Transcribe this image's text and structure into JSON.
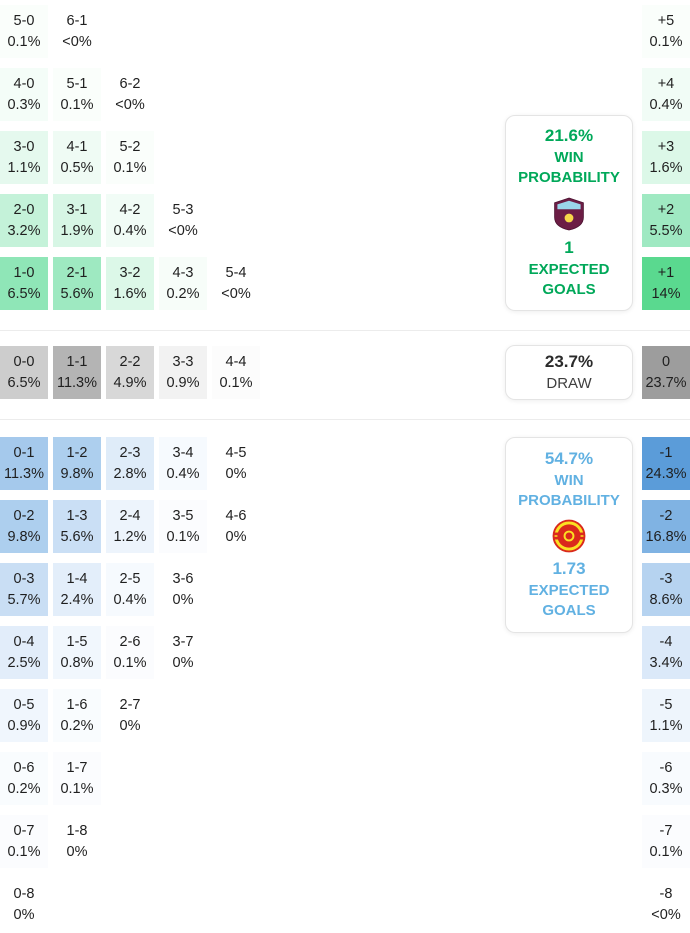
{
  "panels": {
    "home": {
      "team": "Burnley",
      "probability": "21.6%",
      "label1": "WIN",
      "label2": "PROBABILITY",
      "expected_goals": "1",
      "eg_label1": "EXPECTED",
      "eg_label2": "GOALS",
      "accent": "#00a859"
    },
    "draw": {
      "probability": "23.7%",
      "label": "DRAW"
    },
    "away": {
      "team": "Manchester United",
      "probability": "54.7%",
      "label1": "WIN",
      "label2": "PROBABILITY",
      "expected_goals": "1.73",
      "eg_label1": "EXPECTED",
      "eg_label2": "GOALS",
      "accent": "#61b1e2"
    }
  },
  "chart_data": {
    "type": "heatmap",
    "summary": {
      "home_win_probability_pct": 21.6,
      "draw_probability_pct": 23.7,
      "away_win_probability_pct": 54.7,
      "home_expected_goals": 1,
      "away_expected_goals": 1.73
    },
    "sections": [
      {
        "id": "home-win",
        "rows": [
          {
            "cells": [
              {
                "s": "5-0",
                "p": "0.1%",
                "bg": "#fafefb"
              },
              {
                "s": "6-1",
                "p": "<0%",
                "bg": "#ffffff"
              }
            ],
            "margin": {
              "s": "+5",
              "p": "0.1%",
              "bg": "#fafefb"
            }
          },
          {
            "cells": [
              {
                "s": "4-0",
                "p": "0.3%",
                "bg": "#f4fdf8"
              },
              {
                "s": "5-1",
                "p": "0.1%",
                "bg": "#fafefb"
              },
              {
                "s": "6-2",
                "p": "<0%",
                "bg": "#ffffff"
              }
            ],
            "margin": {
              "s": "+4",
              "p": "0.4%",
              "bg": "#f1fcf6"
            }
          },
          {
            "cells": [
              {
                "s": "3-0",
                "p": "1.1%",
                "bg": "#e5f9ee"
              },
              {
                "s": "4-1",
                "p": "0.5%",
                "bg": "#effbf4"
              },
              {
                "s": "5-2",
                "p": "0.1%",
                "bg": "#fafefb"
              }
            ],
            "margin": {
              "s": "+3",
              "p": "1.6%",
              "bg": "#dcf8e8"
            }
          },
          {
            "cells": [
              {
                "s": "2-0",
                "p": "3.2%",
                "bg": "#c4f2d9"
              },
              {
                "s": "3-1",
                "p": "1.9%",
                "bg": "#d7f6e5"
              },
              {
                "s": "4-2",
                "p": "0.4%",
                "bg": "#f1fcf6"
              },
              {
                "s": "5-3",
                "p": "<0%",
                "bg": "#ffffff"
              }
            ],
            "margin": {
              "s": "+2",
              "p": "5.5%",
              "bg": "#9fe9c2"
            }
          },
          {
            "cells": [
              {
                "s": "1-0",
                "p": "6.5%",
                "bg": "#8fe6b7"
              },
              {
                "s": "2-1",
                "p": "5.6%",
                "bg": "#9ee9c1"
              },
              {
                "s": "3-2",
                "p": "1.6%",
                "bg": "#dcf8e8"
              },
              {
                "s": "4-3",
                "p": "0.2%",
                "bg": "#f7fdf9"
              },
              {
                "s": "5-4",
                "p": "<0%",
                "bg": "#ffffff"
              }
            ],
            "margin": {
              "s": "+1",
              "p": "14%",
              "bg": "#5ad98f"
            }
          }
        ]
      },
      {
        "id": "draw",
        "rows": [
          {
            "cells": [
              {
                "s": "0-0",
                "p": "6.5%",
                "bg": "#cdcdcd"
              },
              {
                "s": "1-1",
                "p": "11.3%",
                "bg": "#b4b4b4"
              },
              {
                "s": "2-2",
                "p": "4.9%",
                "bg": "#d8d8d8"
              },
              {
                "s": "3-3",
                "p": "0.9%",
                "bg": "#f2f2f2"
              },
              {
                "s": "4-4",
                "p": "0.1%",
                "bg": "#fcfcfc"
              }
            ],
            "margin": {
              "s": "0",
              "p": "23.7%",
              "bg": "#9d9d9d"
            }
          }
        ]
      },
      {
        "id": "away-win",
        "rows": [
          {
            "cells": [
              {
                "s": "0-1",
                "p": "11.3%",
                "bg": "#a5c9ec"
              },
              {
                "s": "1-2",
                "p": "9.8%",
                "bg": "#adcfee"
              },
              {
                "s": "2-3",
                "p": "2.8%",
                "bg": "#dfecf9"
              },
              {
                "s": "3-4",
                "p": "0.4%",
                "bg": "#f6fafe"
              },
              {
                "s": "4-5",
                "p": "0%",
                "bg": "#ffffff"
              }
            ],
            "margin": {
              "s": "-1",
              "p": "24.3%",
              "bg": "#5b9cd9"
            }
          },
          {
            "cells": [
              {
                "s": "0-2",
                "p": "9.8%",
                "bg": "#adcfee"
              },
              {
                "s": "1-3",
                "p": "5.6%",
                "bg": "#cadff5"
              },
              {
                "s": "2-4",
                "p": "1.2%",
                "bg": "#edf4fc"
              },
              {
                "s": "3-5",
                "p": "0.1%",
                "bg": "#fbfcfe"
              },
              {
                "s": "4-6",
                "p": "0%",
                "bg": "#ffffff"
              }
            ],
            "margin": {
              "s": "-2",
              "p": "16.8%",
              "bg": "#80b3e3"
            }
          },
          {
            "cells": [
              {
                "s": "0-3",
                "p": "5.7%",
                "bg": "#c9def4"
              },
              {
                "s": "1-4",
                "p": "2.4%",
                "bg": "#e3eefa"
              },
              {
                "s": "2-5",
                "p": "0.4%",
                "bg": "#f6fafe"
              },
              {
                "s": "3-6",
                "p": "0%",
                "bg": "#ffffff"
              }
            ],
            "margin": {
              "s": "-3",
              "p": "8.6%",
              "bg": "#b6d3f0"
            }
          },
          {
            "cells": [
              {
                "s": "0-4",
                "p": "2.5%",
                "bg": "#e2edfa"
              },
              {
                "s": "1-5",
                "p": "0.8%",
                "bg": "#f1f7fd"
              },
              {
                "s": "2-6",
                "p": "0.1%",
                "bg": "#fbfcfe"
              },
              {
                "s": "3-7",
                "p": "0%",
                "bg": "#ffffff"
              }
            ],
            "margin": {
              "s": "-4",
              "p": "3.4%",
              "bg": "#dbe9f9"
            }
          },
          {
            "cells": [
              {
                "s": "0-5",
                "p": "0.9%",
                "bg": "#f0f6fd"
              },
              {
                "s": "1-6",
                "p": "0.2%",
                "bg": "#f9fcfe"
              },
              {
                "s": "2-7",
                "p": "0%",
                "bg": "#ffffff"
              }
            ],
            "margin": {
              "s": "-5",
              "p": "1.1%",
              "bg": "#eef5fc"
            }
          },
          {
            "cells": [
              {
                "s": "0-6",
                "p": "0.2%",
                "bg": "#f9fcfe"
              },
              {
                "s": "1-7",
                "p": "0.1%",
                "bg": "#fbfcfe"
              }
            ],
            "margin": {
              "s": "-6",
              "p": "0.3%",
              "bg": "#f8fbfe"
            }
          },
          {
            "cells": [
              {
                "s": "0-7",
                "p": "0.1%",
                "bg": "#fbfcfe"
              },
              {
                "s": "1-8",
                "p": "0%",
                "bg": "#ffffff"
              }
            ],
            "margin": {
              "s": "-7",
              "p": "0.1%",
              "bg": "#fbfcfe"
            }
          },
          {
            "cells": [
              {
                "s": "0-8",
                "p": "0%",
                "bg": "#ffffff"
              }
            ],
            "margin": {
              "s": "-8",
              "p": "<0%",
              "bg": "#ffffff"
            }
          }
        ]
      }
    ]
  }
}
